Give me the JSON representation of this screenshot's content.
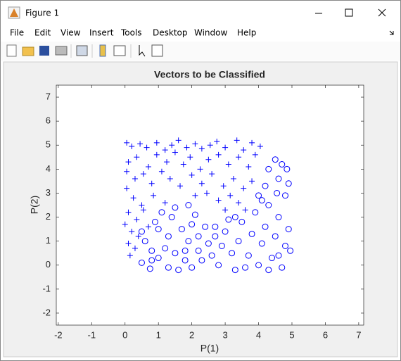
{
  "window": {
    "title": "Figure 1",
    "menu": [
      "File",
      "Edit",
      "View",
      "Insert",
      "Tools",
      "Desktop",
      "Window",
      "Help"
    ]
  },
  "chart_data": {
    "type": "scatter",
    "title": "Vectors to be Classified",
    "x_label": "P(1)",
    "y_label": "P(2)",
    "xlim": [
      -2.06,
      7.15
    ],
    "ylim": [
      -2.5,
      7.5
    ],
    "xticks": [
      -2,
      -1,
      0,
      1,
      2,
      3,
      4,
      5,
      6,
      7
    ],
    "yticks": [
      -2,
      -1,
      0,
      1,
      2,
      3,
      4,
      5,
      6,
      7
    ],
    "series": [
      {
        "marker": "+",
        "color": "#0000ff",
        "x": [
          0.05,
          0.2,
          0.45,
          0.65,
          0.95,
          1.2,
          1.4,
          1.6,
          1.85,
          2.1,
          2.3,
          2.55,
          2.75,
          3.0,
          3.35,
          3.55,
          3.8,
          4.05,
          0.1,
          0.35,
          0.7,
          0.95,
          1.25,
          1.5,
          1.75,
          1.95,
          2.25,
          2.5,
          2.8,
          3.1,
          3.4,
          3.7,
          3.9,
          0.05,
          0.3,
          0.55,
          0.8,
          1.1,
          1.35,
          1.65,
          2.0,
          2.3,
          2.6,
          2.95,
          3.25,
          3.55,
          3.8,
          0.05,
          0.25,
          0.5,
          0.85,
          1.2,
          2.1,
          2.45,
          2.8,
          3.15,
          3.4,
          0.1,
          0.35,
          0.0,
          0.2,
          0.4,
          0.1,
          0.3,
          0.15,
          0.7,
          0.55,
          3.0,
          3.6
        ],
        "y": [
          5.1,
          4.95,
          5.05,
          4.9,
          5.1,
          4.8,
          5.0,
          5.2,
          4.9,
          5.05,
          4.85,
          5.0,
          5.15,
          4.9,
          5.2,
          4.8,
          5.1,
          4.95,
          4.3,
          4.5,
          4.1,
          4.6,
          4.3,
          4.7,
          4.2,
          4.5,
          4.0,
          4.4,
          4.6,
          4.2,
          4.5,
          4.1,
          4.6,
          3.9,
          3.6,
          3.8,
          3.4,
          3.9,
          3.6,
          3.3,
          3.75,
          3.4,
          3.8,
          3.3,
          3.6,
          3.2,
          3.5,
          3.2,
          2.8,
          2.5,
          2.9,
          2.6,
          2.9,
          3.0,
          2.7,
          2.9,
          2.6,
          2.2,
          1.9,
          1.7,
          1.4,
          1.2,
          0.9,
          0.7,
          0.4,
          1.6,
          2.3,
          2.3,
          2.3
        ]
      },
      {
        "marker": "o",
        "color": "#0000ff",
        "x": [
          0.5,
          0.6,
          0.8,
          0.5,
          0.75,
          1.0,
          1.2,
          1.0,
          1.3,
          1.5,
          1.6,
          1.8,
          1.9,
          2.0,
          2.2,
          1.7,
          1.4,
          1.1,
          0.9,
          1.5,
          1.9,
          2.1,
          2.4,
          2.3,
          2.6,
          2.8,
          2.9,
          2.7,
          3.0,
          3.2,
          3.3,
          3.4,
          3.5,
          3.7,
          3.8,
          3.9,
          4.0,
          4.1,
          4.2,
          4.3,
          4.4,
          4.5,
          4.6,
          4.7,
          4.8,
          4.9,
          4.95,
          4.0,
          4.2,
          4.3,
          4.5,
          4.6,
          4.7,
          4.8,
          4.9,
          4.85,
          4.1,
          4.55,
          3.1,
          2.5,
          2.0,
          1.3,
          0.8,
          2.2,
          3.6,
          4.3,
          4.6,
          2.7,
          3.3,
          1.8
        ],
        "y": [
          1.4,
          1.0,
          0.6,
          0.1,
          -0.15,
          0.3,
          0.7,
          1.5,
          1.2,
          0.5,
          -0.2,
          0.2,
          1.0,
          1.7,
          0.6,
          1.5,
          2.0,
          2.2,
          1.8,
          2.4,
          2.5,
          2.1,
          1.6,
          0.2,
          0.4,
          0.0,
          0.8,
          1.2,
          1.4,
          0.5,
          -0.2,
          1.0,
          1.8,
          0.4,
          1.3,
          2.2,
          0.0,
          0.9,
          1.6,
          2.5,
          0.3,
          1.2,
          2.0,
          -0.1,
          0.8,
          1.5,
          0.6,
          2.9,
          3.3,
          4.0,
          4.4,
          3.6,
          4.2,
          2.9,
          3.4,
          4.0,
          2.7,
          3.0,
          1.9,
          0.9,
          -0.1,
          -0.1,
          0.2,
          1.2,
          -0.1,
          -0.2,
          0.4,
          1.6,
          2.0,
          0.6
        ]
      }
    ]
  }
}
